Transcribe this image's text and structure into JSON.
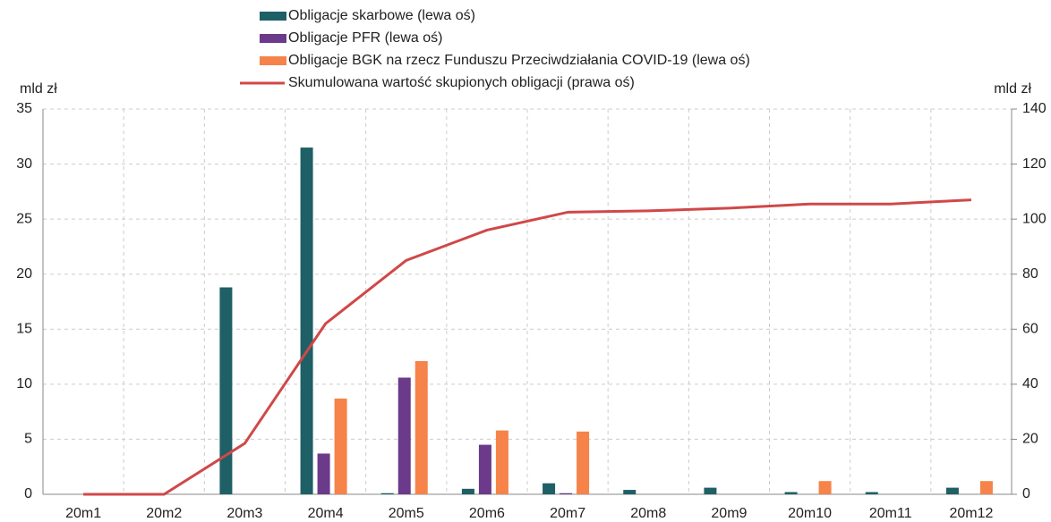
{
  "chart_data": {
    "type": "bar",
    "y_label": "mld zł",
    "y2_label": "mld zł",
    "categories": [
      "20m1",
      "20m2",
      "20m3",
      "20m4",
      "20m5",
      "20m6",
      "20m7",
      "20m8",
      "20m9",
      "20m10",
      "20m11",
      "20m12"
    ],
    "series": [
      {
        "name": "Obligacje skarbowe (lewa oś)",
        "type": "bar",
        "color": "#1f5f66",
        "values": [
          0,
          0,
          18.8,
          31.5,
          0.1,
          0.5,
          1.0,
          0.4,
          0.6,
          0.2,
          0.2,
          0.6
        ]
      },
      {
        "name": "Obligacje PFR (lewa oś)",
        "type": "bar",
        "color": "#6b3a8a",
        "values": [
          0,
          0,
          0,
          3.7,
          10.6,
          4.5,
          0.1,
          0,
          0,
          0,
          0,
          0
        ]
      },
      {
        "name": "Obligacje BGK na rzecz Funduszu Przeciwdziałania COVID-19 (lewa oś)",
        "type": "bar",
        "color": "#f5834a",
        "values": [
          0,
          0,
          0,
          8.7,
          12.1,
          5.8,
          5.7,
          0,
          0,
          1.2,
          0,
          1.2
        ]
      },
      {
        "name": "Skumulowana wartość skupionych obligacji (prawa oś)",
        "type": "line",
        "axis": "y2",
        "color": "#d04848",
        "values": [
          0,
          0,
          18.5,
          62,
          85,
          96,
          102.5,
          103,
          104,
          105.5,
          105.5,
          107
        ]
      }
    ],
    "ylim": [
      0,
      35
    ],
    "yticks": [
      0,
      5,
      10,
      15,
      20,
      25,
      30,
      35
    ],
    "y2lim": [
      0,
      140
    ],
    "y2ticks": [
      0,
      20,
      40,
      60,
      80,
      100,
      120,
      140
    ],
    "grid": true
  }
}
